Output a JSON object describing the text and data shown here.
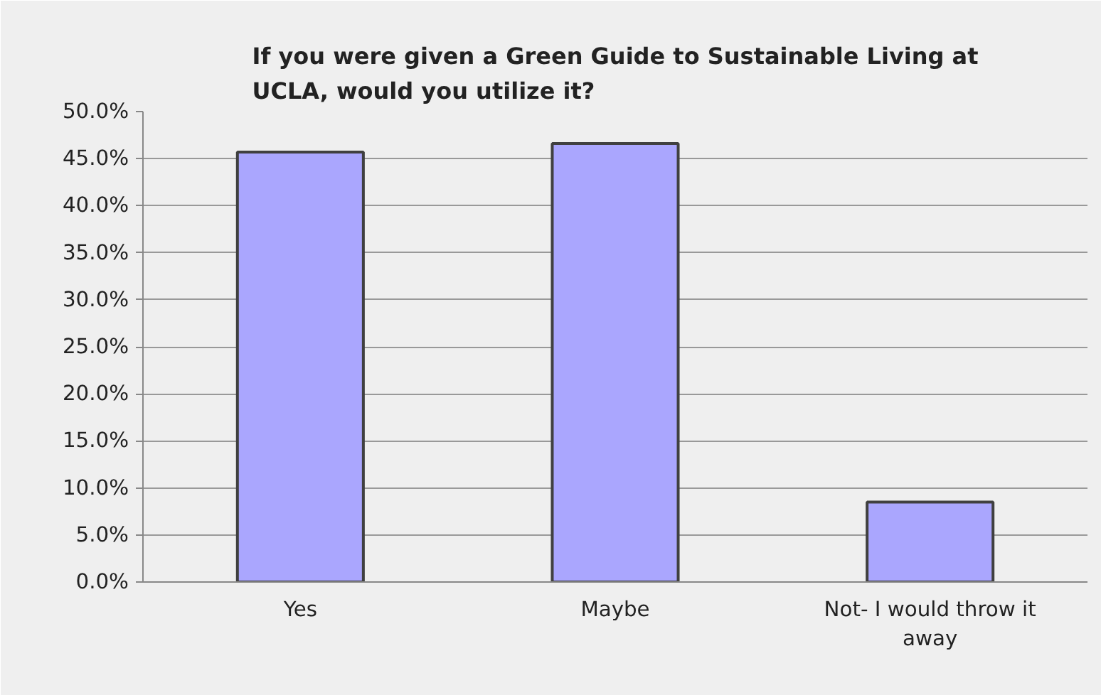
{
  "chart_data": {
    "type": "bar",
    "title": "If you were given a Green Guide to Sustainable Living at\nUCLA, would you utilize it?",
    "categories": [
      "Yes",
      "Maybe",
      "Not- I would throw it\naway"
    ],
    "values": [
      45.7,
      46.6,
      8.5
    ],
    "color": "#aaa6fe",
    "ylim": [
      0,
      50
    ],
    "yticks": [
      {
        "value": 0,
        "label": "0.0%"
      },
      {
        "value": 5,
        "label": "5.0%"
      },
      {
        "value": 10,
        "label": "10.0%"
      },
      {
        "value": 15,
        "label": "15.0%"
      },
      {
        "value": 20,
        "label": "20.0%"
      },
      {
        "value": 25,
        "label": "25.0%"
      },
      {
        "value": 30,
        "label": "30.0%"
      },
      {
        "value": 35,
        "label": "35.0%"
      },
      {
        "value": 40,
        "label": "40.0%"
      },
      {
        "value": 45,
        "label": "45.0%"
      },
      {
        "value": 50,
        "label": "50.0%"
      }
    ],
    "grid": "y"
  }
}
